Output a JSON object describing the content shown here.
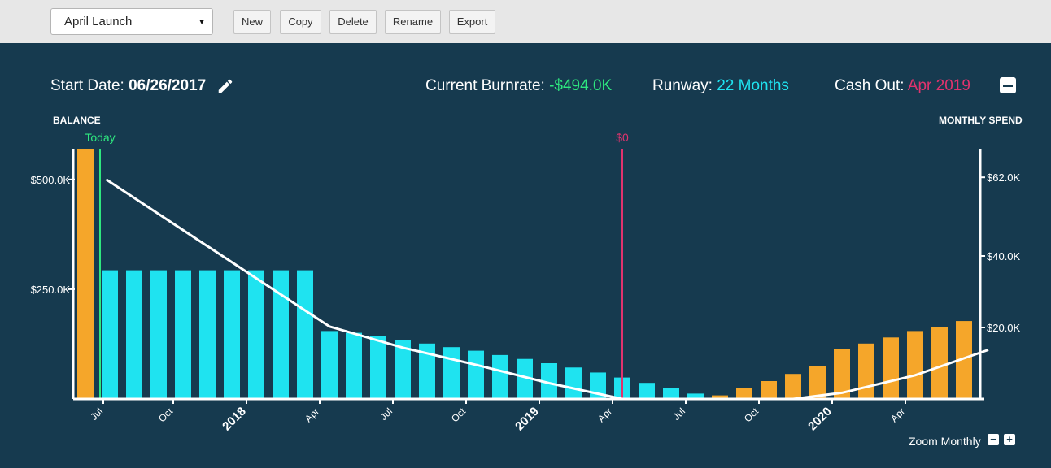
{
  "toolbar": {
    "scenario_select": "April Launch",
    "buttons": {
      "new": "New",
      "copy": "Copy",
      "delete": "Delete",
      "rename": "Rename",
      "export": "Export"
    }
  },
  "header": {
    "start_date_label": "Start Date:",
    "start_date_value": "06/26/2017",
    "burnrate_label": "Current Burnrate:",
    "burnrate_value": "-$494.0K",
    "runway_label": "Runway:",
    "runway_value": "22 Months",
    "cashout_label": "Cash Out:",
    "cashout_value": "Apr 2019"
  },
  "colors": {
    "background": "#163a4f",
    "spend_bar": "#1fe3f0",
    "projected_bar": "#f5a62a",
    "balance_line": "#ffffff",
    "today_marker": "#2ee87f",
    "zero_marker": "#e0336e",
    "burnrate_value": "#2ee87f",
    "runway_value": "#1fe3f0",
    "cashout_value": "#e0336e"
  },
  "chart_data": {
    "type": "bar",
    "left_axis_title": "BALANCE",
    "right_axis_title": "MONTHLY SPEND",
    "left_ticks": [
      "$250.0K",
      "$500.0K"
    ],
    "right_ticks": [
      "$20.0K",
      "$40.0K",
      "$62.0K"
    ],
    "x_ticks": [
      {
        "label": "Jul",
        "bold": false
      },
      {
        "label": "Oct",
        "bold": false
      },
      {
        "label": "2018",
        "bold": true
      },
      {
        "label": "Apr",
        "bold": false
      },
      {
        "label": "Jul",
        "bold": false
      },
      {
        "label": "Oct",
        "bold": false
      },
      {
        "label": "2019",
        "bold": true
      },
      {
        "label": "Apr",
        "bold": false
      },
      {
        "label": "Jul",
        "bold": false
      },
      {
        "label": "Oct",
        "bold": false
      },
      {
        "label": "2020",
        "bold": true
      },
      {
        "label": "Apr",
        "bold": false
      }
    ],
    "markers": [
      {
        "label": "Today",
        "month": "Jul 2017"
      },
      {
        "label": "$0",
        "month": "Apr 2019"
      }
    ],
    "balance_ylim": [
      0,
      570000
    ],
    "spend_ylim": [
      0,
      70000
    ],
    "months": [
      "Jun 2017",
      "Jul 2017",
      "Aug 2017",
      "Sep 2017",
      "Oct 2017",
      "Nov 2017",
      "Dec 2017",
      "Jan 2018",
      "Feb 2018",
      "Mar 2018",
      "Apr 2018",
      "May 2018",
      "Jun 2018",
      "Jul 2018",
      "Aug 2018",
      "Sep 2018",
      "Oct 2018",
      "Nov 2018",
      "Dec 2018",
      "Jan 2019",
      "Feb 2019",
      "Mar 2019",
      "Apr 2019",
      "May 2019",
      "Jun 2019",
      "Jul 2019",
      "Aug 2019",
      "Sep 2019",
      "Oct 2019",
      "Nov 2019",
      "Dec 2019",
      "Jan 2020",
      "Feb 2020",
      "Mar 2020",
      "Apr 2020",
      "May 2020",
      "Jun 2020"
    ],
    "series": [
      {
        "name": "monthly spend",
        "values": [
          70000,
          36000,
          36000,
          36000,
          36000,
          36000,
          36000,
          36000,
          36000,
          36000,
          19000,
          18500,
          17500,
          16500,
          15500,
          14500,
          13500,
          12300,
          11200,
          10000,
          8800,
          7400,
          6000,
          4500,
          3000,
          1500,
          1000,
          3000,
          5000,
          7000,
          9200,
          14000,
          15500,
          17200,
          19000,
          20200,
          21800
        ],
        "projected": [
          true,
          false,
          false,
          false,
          false,
          false,
          false,
          false,
          false,
          false,
          false,
          false,
          false,
          false,
          false,
          false,
          false,
          false,
          false,
          false,
          false,
          false,
          false,
          false,
          false,
          false,
          true,
          true,
          true,
          true,
          true,
          true,
          true,
          true,
          true,
          true,
          true
        ]
      },
      {
        "name": "balance",
        "x_months": [
          0.85,
          10,
          13,
          16,
          19,
          22,
          29,
          31,
          34,
          37
        ],
        "values": [
          500000,
          165000,
          117000,
          78000,
          36000,
          0,
          0,
          14000,
          54000,
          112000
        ]
      }
    ]
  },
  "footer": {
    "zoom_label": "Zoom Monthly",
    "zoom_out": "−",
    "zoom_in": "+"
  }
}
